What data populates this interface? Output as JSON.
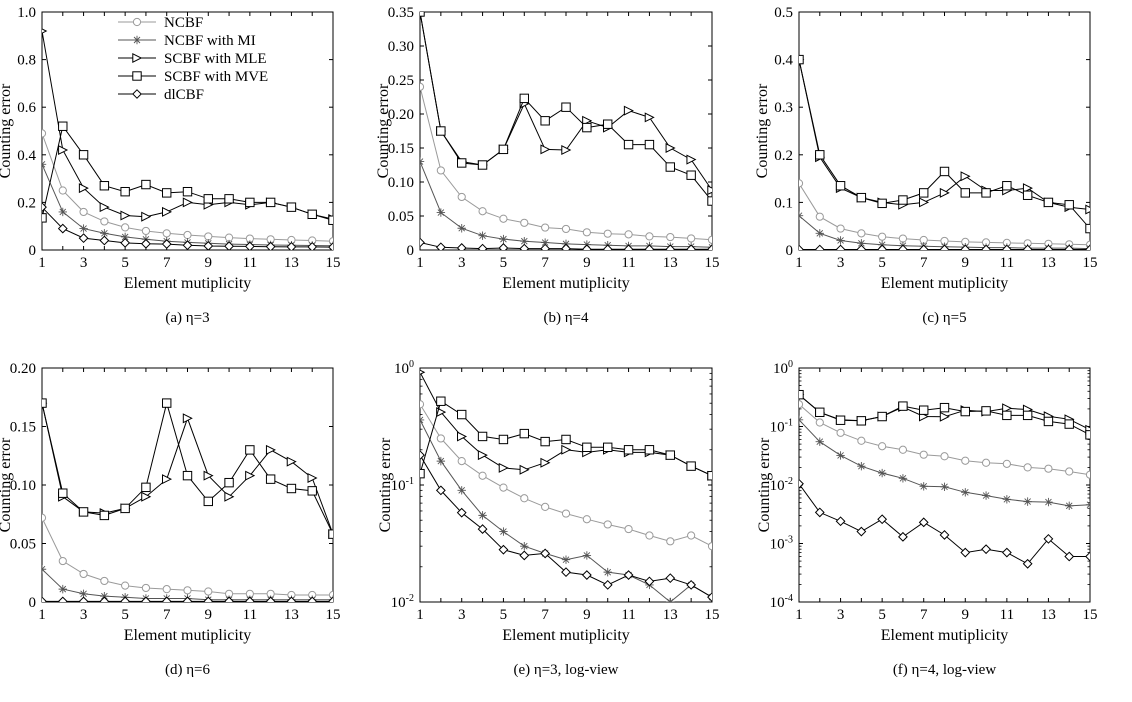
{
  "chart_data": [
    {
      "type": "line",
      "caption": "(a) η=3",
      "xlabel": "Element mutiplicity",
      "ylabel": "Counting error",
      "x": [
        1,
        2,
        3,
        4,
        5,
        6,
        7,
        8,
        9,
        10,
        11,
        12,
        13,
        14,
        15
      ],
      "xticks": [
        "1",
        "3",
        "5",
        "7",
        "9",
        "11",
        "13",
        "15"
      ],
      "ylim": [
        0,
        1.0
      ],
      "yscale": "linear",
      "yticks": [
        0,
        0.2,
        0.4,
        0.6,
        0.8,
        1.0
      ],
      "yticklabels": [
        "0",
        "0.2",
        "0.4",
        "0.6",
        "0.8",
        "1.0"
      ],
      "legend": "top-right",
      "series": [
        {
          "name": "NCBF",
          "values": [
            0.49,
            0.25,
            0.16,
            0.12,
            0.095,
            0.08,
            0.07,
            0.063,
            0.057,
            0.052,
            0.048,
            0.045,
            0.042,
            0.04,
            0.037
          ]
        },
        {
          "name": "NCBF with MI",
          "values": [
            0.36,
            0.16,
            0.09,
            0.07,
            0.055,
            0.045,
            0.037,
            0.032,
            0.028,
            0.025,
            0.023,
            0.021,
            0.02,
            0.019,
            0.018
          ]
        },
        {
          "name": "SCBF with MLE",
          "values": [
            0.92,
            0.42,
            0.26,
            0.18,
            0.145,
            0.14,
            0.16,
            0.2,
            0.19,
            0.2,
            0.19,
            0.2,
            0.18,
            0.15,
            0.13
          ]
        },
        {
          "name": "SCBF with MVE",
          "values": [
            0.135,
            0.52,
            0.4,
            0.27,
            0.245,
            0.275,
            0.24,
            0.245,
            0.215,
            0.215,
            0.2,
            0.2,
            0.18,
            0.15,
            0.125
          ]
        },
        {
          "name": "dlCBF",
          "values": [
            0.18,
            0.09,
            0.05,
            0.04,
            0.03,
            0.026,
            0.025,
            0.02,
            0.017,
            0.016,
            0.015,
            0.014,
            0.013,
            0.013,
            0.012
          ]
        }
      ]
    },
    {
      "type": "line",
      "caption": "(b) η=4",
      "xlabel": "Element mutiplicity",
      "ylabel": "Counting error",
      "x": [
        1,
        2,
        3,
        4,
        5,
        6,
        7,
        8,
        9,
        10,
        11,
        12,
        13,
        14,
        15
      ],
      "xticks": [
        "1",
        "3",
        "5",
        "7",
        "9",
        "11",
        "13",
        "15"
      ],
      "ylim": [
        0,
        0.35
      ],
      "yscale": "linear",
      "yticks": [
        0,
        0.05,
        0.1,
        0.15,
        0.2,
        0.25,
        0.3,
        0.35
      ],
      "yticklabels": [
        "0",
        "0.05",
        "0.10",
        "0.15",
        "0.20",
        "0.25",
        "0.30",
        "0.35"
      ],
      "series": [
        {
          "name": "NCBF",
          "values": [
            0.24,
            0.117,
            0.078,
            0.057,
            0.046,
            0.04,
            0.033,
            0.031,
            0.026,
            0.024,
            0.023,
            0.02,
            0.019,
            0.017,
            0.015
          ]
        },
        {
          "name": "NCBF with MI",
          "values": [
            0.13,
            0.055,
            0.032,
            0.021,
            0.016,
            0.013,
            0.011,
            0.009,
            0.008,
            0.007,
            0.006,
            0.006,
            0.005,
            0.005,
            0.004
          ]
        },
        {
          "name": "SCBF with MLE",
          "values": [
            0.35,
            0.175,
            0.13,
            0.125,
            0.148,
            0.215,
            0.148,
            0.147,
            0.19,
            0.18,
            0.205,
            0.195,
            0.15,
            0.133,
            0.088
          ]
        },
        {
          "name": "SCBF with MVE",
          "values": [
            0.35,
            0.175,
            0.128,
            0.125,
            0.148,
            0.223,
            0.19,
            0.21,
            0.18,
            0.185,
            0.155,
            0.155,
            0.122,
            0.11,
            0.072
          ]
        },
        {
          "name": "dlCBF",
          "values": [
            0.011,
            0.004,
            0.003,
            0.002,
            0.003,
            0.002,
            0.002,
            0.002,
            0.001,
            0.001,
            0.001,
            0.001,
            0.001,
            0.001,
            0.001
          ]
        }
      ]
    },
    {
      "type": "line",
      "caption": "(c) η=5",
      "xlabel": "Element mutiplicity",
      "ylabel": "Counting error",
      "x": [
        1,
        2,
        3,
        4,
        5,
        6,
        7,
        8,
        9,
        10,
        11,
        12,
        13,
        14,
        15
      ],
      "xticks": [
        "1",
        "3",
        "5",
        "7",
        "9",
        "11",
        "13",
        "15"
      ],
      "ylim": [
        0,
        0.5
      ],
      "yscale": "linear",
      "yticks": [
        0,
        0.1,
        0.2,
        0.3,
        0.4,
        0.5
      ],
      "yticklabels": [
        "0",
        "0.1",
        "0.2",
        "0.3",
        "0.4",
        "0.5"
      ],
      "series": [
        {
          "name": "NCBF",
          "values": [
            0.14,
            0.07,
            0.045,
            0.035,
            0.028,
            0.024,
            0.021,
            0.019,
            0.017,
            0.016,
            0.015,
            0.014,
            0.013,
            0.012,
            0.011
          ]
        },
        {
          "name": "NCBF with MI",
          "values": [
            0.072,
            0.035,
            0.02,
            0.014,
            0.011,
            0.009,
            0.008,
            0.007,
            0.006,
            0.005,
            0.005,
            0.004,
            0.004,
            0.004,
            0.003
          ]
        },
        {
          "name": "SCBF with MLE",
          "values": [
            0.4,
            0.195,
            0.13,
            0.11,
            0.1,
            0.095,
            0.1,
            0.12,
            0.155,
            0.125,
            0.125,
            0.13,
            0.1,
            0.09,
            0.085
          ]
        },
        {
          "name": "SCBF with MVE",
          "values": [
            0.4,
            0.2,
            0.135,
            0.11,
            0.098,
            0.105,
            0.12,
            0.165,
            0.12,
            0.12,
            0.135,
            0.115,
            0.1,
            0.095,
            0.045
          ]
        },
        {
          "name": "dlCBF",
          "values": [
            0.001,
            0.001,
            0.001,
            0.001,
            0.001,
            0.001,
            0.001,
            0.001,
            0.001,
            0.001,
            0.001,
            0.001,
            0.001,
            0.001,
            0.001
          ]
        }
      ]
    },
    {
      "type": "line",
      "caption": "(d) η=6",
      "xlabel": "Element mutiplicity",
      "ylabel": "Counting error",
      "x": [
        1,
        2,
        3,
        4,
        5,
        6,
        7,
        8,
        9,
        10,
        11,
        12,
        13,
        14,
        15
      ],
      "xticks": [
        "1",
        "3",
        "5",
        "7",
        "9",
        "11",
        "13",
        "15"
      ],
      "ylim": [
        0,
        0.2
      ],
      "yscale": "linear",
      "yticks": [
        0,
        0.05,
        0.1,
        0.15,
        0.2
      ],
      "yticklabels": [
        "0",
        "0.05",
        "0.10",
        "0.15",
        "0.20"
      ],
      "series": [
        {
          "name": "NCBF",
          "values": [
            0.072,
            0.035,
            0.024,
            0.018,
            0.014,
            0.012,
            0.011,
            0.01,
            0.009,
            0.007,
            0.007,
            0.007,
            0.006,
            0.006,
            0.006
          ]
        },
        {
          "name": "NCBF with MI",
          "values": [
            0.028,
            0.011,
            0.007,
            0.005,
            0.004,
            0.003,
            0.003,
            0.003,
            0.002,
            0.002,
            0.002,
            0.002,
            0.002,
            0.002,
            0.002
          ]
        },
        {
          "name": "SCBF with MLE",
          "values": [
            0.17,
            0.09,
            0.077,
            0.076,
            0.08,
            0.09,
            0.105,
            0.157,
            0.108,
            0.09,
            0.108,
            0.13,
            0.12,
            0.106,
            0.058
          ]
        },
        {
          "name": "SCBF with MVE",
          "values": [
            0.17,
            0.093,
            0.077,
            0.074,
            0.08,
            0.098,
            0.17,
            0.108,
            0.086,
            0.102,
            0.13,
            0.105,
            0.097,
            0.095,
            0.058
          ]
        },
        {
          "name": "dlCBF",
          "values": [
            0.0005,
            0.0005,
            0.0005,
            0.0005,
            0.0005,
            0.0005,
            0.0005,
            0.0005,
            0.0005,
            0.0005,
            0.0005,
            0.0005,
            0.0005,
            0.0005,
            0.0005
          ]
        }
      ]
    },
    {
      "type": "line",
      "caption": "(e) η=3, log-view",
      "xlabel": "Element mutiplicity",
      "ylabel": "Counting error",
      "x": [
        1,
        2,
        3,
        4,
        5,
        6,
        7,
        8,
        9,
        10,
        11,
        12,
        13,
        14,
        15
      ],
      "xticks": [
        "1",
        "3",
        "5",
        "7",
        "9",
        "11",
        "13",
        "15"
      ],
      "ylim": [
        0.01,
        1
      ],
      "yscale": "log",
      "yticks": [
        0.01,
        0.1,
        1
      ],
      "yticklabels": [
        "10^-2",
        "10^-1",
        "10^0"
      ],
      "series": [
        {
          "name": "NCBF",
          "values": [
            0.49,
            0.25,
            0.16,
            0.12,
            0.095,
            0.077,
            0.065,
            0.057,
            0.051,
            0.046,
            0.042,
            0.037,
            0.033,
            0.037,
            0.03
          ]
        },
        {
          "name": "NCBF with MI",
          "values": [
            0.36,
            0.16,
            0.09,
            0.055,
            0.04,
            0.03,
            0.026,
            0.023,
            0.025,
            0.018,
            0.017,
            0.014,
            0.01,
            0.014,
            0.011
          ]
        },
        {
          "name": "SCBF with MLE",
          "values": [
            0.92,
            0.42,
            0.26,
            0.18,
            0.14,
            0.135,
            0.155,
            0.2,
            0.19,
            0.2,
            0.19,
            0.19,
            0.18,
            0.145,
            0.12
          ]
        },
        {
          "name": "SCBF with MVE",
          "values": [
            0.125,
            0.52,
            0.4,
            0.26,
            0.245,
            0.275,
            0.235,
            0.245,
            0.21,
            0.21,
            0.2,
            0.2,
            0.18,
            0.145,
            0.12
          ]
        },
        {
          "name": "dlCBF",
          "values": [
            0.18,
            0.09,
            0.058,
            0.042,
            0.028,
            0.025,
            0.026,
            0.018,
            0.017,
            0.014,
            0.017,
            0.015,
            0.016,
            0.014,
            0.011
          ]
        }
      ]
    },
    {
      "type": "line",
      "caption": "(f) η=4, log-view",
      "xlabel": "Element mutiplicity",
      "ylabel": "Counting error",
      "x": [
        1,
        2,
        3,
        4,
        5,
        6,
        7,
        8,
        9,
        10,
        11,
        12,
        13,
        14,
        15
      ],
      "xticks": [
        "1",
        "3",
        "5",
        "7",
        "9",
        "11",
        "13",
        "15"
      ],
      "ylim": [
        0.0001,
        1
      ],
      "yscale": "log",
      "yticks": [
        0.0001,
        0.001,
        0.01,
        0.1,
        1
      ],
      "yticklabels": [
        "10^-4",
        "10^-3",
        "10^-2",
        "10^-1",
        "10^0"
      ],
      "series": [
        {
          "name": "NCBF",
          "values": [
            0.24,
            0.117,
            0.078,
            0.057,
            0.046,
            0.04,
            0.033,
            0.031,
            0.026,
            0.024,
            0.023,
            0.02,
            0.019,
            0.017,
            0.015
          ]
        },
        {
          "name": "NCBF with MI",
          "values": [
            0.13,
            0.055,
            0.032,
            0.021,
            0.016,
            0.013,
            0.0095,
            0.0093,
            0.0075,
            0.0066,
            0.0057,
            0.0052,
            0.0051,
            0.0044,
            0.0046
          ]
        },
        {
          "name": "SCBF with MLE",
          "values": [
            0.35,
            0.175,
            0.13,
            0.125,
            0.148,
            0.215,
            0.148,
            0.147,
            0.19,
            0.18,
            0.205,
            0.195,
            0.15,
            0.133,
            0.088
          ]
        },
        {
          "name": "SCBF with MVE",
          "values": [
            0.35,
            0.175,
            0.128,
            0.125,
            0.148,
            0.223,
            0.19,
            0.21,
            0.18,
            0.185,
            0.155,
            0.155,
            0.122,
            0.11,
            0.072
          ]
        },
        {
          "name": "dlCBF",
          "values": [
            0.0105,
            0.0034,
            0.0024,
            0.0016,
            0.0026,
            0.0013,
            0.0023,
            0.0014,
            0.0007,
            0.0008,
            0.0007,
            0.00045,
            0.0012,
            0.0006,
            0.0006
          ]
        }
      ]
    }
  ],
  "legend": {
    "entries": [
      {
        "name": "NCBF",
        "color": "#9a9a9a",
        "marker": "circle"
      },
      {
        "name": "NCBF with MI",
        "color": "#555555",
        "marker": "star"
      },
      {
        "name": "SCBF with MLE",
        "color": "#000000",
        "marker": "triangle-right"
      },
      {
        "name": "SCBF with MVE",
        "color": "#000000",
        "marker": "square"
      },
      {
        "name": "dlCBF",
        "color": "#000000",
        "marker": "diamond"
      }
    ]
  }
}
